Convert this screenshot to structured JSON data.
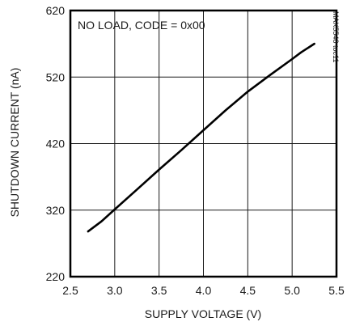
{
  "chart_data": {
    "type": "line",
    "title": "",
    "xlabel": "SUPPLY VOLTAGE (V)",
    "ylabel": "SHUTDOWN CURRENT (nA)",
    "xlim": [
      2.5,
      5.5
    ],
    "ylim": [
      220,
      620
    ],
    "xticks": [
      2.5,
      3.0,
      3.5,
      4.0,
      4.5,
      5.0,
      5.5
    ],
    "xtick_labels": [
      "2.5",
      "3.0",
      "3.5",
      "4.0",
      "4.5",
      "5.0",
      "5.5"
    ],
    "yticks": [
      220,
      320,
      420,
      520,
      620
    ],
    "ytick_labels": [
      "220",
      "320",
      "420",
      "520",
      "620"
    ],
    "grid": true,
    "annotation": "NO LOAD, CODE = 0x00",
    "watermark": "MAX5548 toc11",
    "series": [
      {
        "x": [
          2.7,
          2.85,
          3.0,
          3.25,
          3.5,
          3.75,
          4.0,
          4.25,
          4.5,
          4.75,
          5.0,
          5.1,
          5.25
        ],
        "values": [
          288,
          303,
          321,
          351,
          381,
          410,
          440,
          470,
          498,
          523,
          547,
          557,
          570
        ]
      }
    ]
  }
}
